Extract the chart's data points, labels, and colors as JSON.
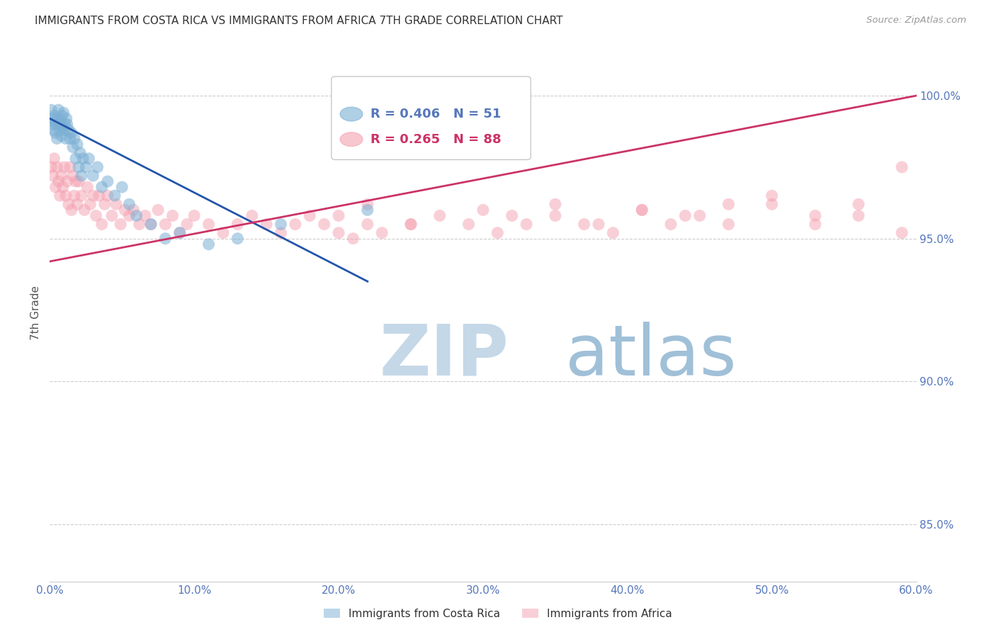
{
  "title": "IMMIGRANTS FROM COSTA RICA VS IMMIGRANTS FROM AFRICA 7TH GRADE CORRELATION CHART",
  "source": "Source: ZipAtlas.com",
  "ylabel": "7th Grade",
  "xlim": [
    0.0,
    60.0
  ],
  "ylim": [
    83.0,
    101.8
  ],
  "legend_blue_label": "Immigrants from Costa Rica",
  "legend_pink_label": "Immigrants from Africa",
  "legend_r_blue": "R = 0.406",
  "legend_n_blue": "N = 51",
  "legend_r_pink": "R = 0.265",
  "legend_n_pink": "N = 88",
  "blue_color": "#7BAFD4",
  "pink_color": "#F4A0B0",
  "trendline_blue_color": "#2255AA",
  "trendline_pink_color": "#CC3366",
  "watermark_zip_color": "#C5D8E8",
  "watermark_atlas_color": "#A0C0D8",
  "background_color": "#FFFFFF",
  "grid_color": "#CCCCCC",
  "axis_label_color": "#5577BB",
  "title_color": "#333333",
  "blue_scatter_x": [
    0.1,
    0.15,
    0.2,
    0.25,
    0.3,
    0.35,
    0.4,
    0.45,
    0.5,
    0.55,
    0.6,
    0.65,
    0.7,
    0.75,
    0.8,
    0.85,
    0.9,
    0.95,
    1.0,
    1.05,
    1.1,
    1.15,
    1.2,
    1.3,
    1.4,
    1.5,
    1.6,
    1.7,
    1.8,
    1.9,
    2.0,
    2.1,
    2.2,
    2.3,
    2.5,
    2.7,
    3.0,
    3.3,
    3.6,
    4.0,
    4.5,
    5.0,
    5.5,
    6.0,
    7.0,
    8.0,
    9.0,
    11.0,
    13.0,
    16.0,
    22.0
  ],
  "blue_scatter_y": [
    99.5,
    99.2,
    99.0,
    98.8,
    99.3,
    99.1,
    98.7,
    99.0,
    98.5,
    99.2,
    99.5,
    99.0,
    98.8,
    99.1,
    98.6,
    99.3,
    98.9,
    99.4,
    98.8,
    99.0,
    98.5,
    99.2,
    99.0,
    98.8,
    98.5,
    98.7,
    98.2,
    98.5,
    97.8,
    98.3,
    97.5,
    98.0,
    97.2,
    97.8,
    97.5,
    97.8,
    97.2,
    97.5,
    96.8,
    97.0,
    96.5,
    96.8,
    96.2,
    95.8,
    95.5,
    95.0,
    95.2,
    94.8,
    95.0,
    95.5,
    96.0
  ],
  "pink_scatter_x": [
    0.1,
    0.2,
    0.3,
    0.4,
    0.5,
    0.6,
    0.7,
    0.8,
    0.9,
    1.0,
    1.1,
    1.2,
    1.3,
    1.4,
    1.5,
    1.6,
    1.7,
    1.8,
    1.9,
    2.0,
    2.2,
    2.4,
    2.6,
    2.8,
    3.0,
    3.2,
    3.4,
    3.6,
    3.8,
    4.0,
    4.3,
    4.6,
    4.9,
    5.2,
    5.5,
    5.8,
    6.2,
    6.6,
    7.0,
    7.5,
    8.0,
    8.5,
    9.0,
    9.5,
    10.0,
    11.0,
    12.0,
    13.0,
    14.0,
    15.0,
    16.0,
    17.0,
    18.0,
    19.0,
    20.0,
    21.0,
    22.0,
    23.0,
    25.0,
    27.0,
    29.0,
    31.0,
    33.0,
    35.0,
    37.0,
    39.0,
    41.0,
    43.0,
    45.0,
    47.0,
    50.0,
    53.0,
    56.0,
    59.0,
    20.0,
    22.0,
    25.0,
    30.0,
    32.0,
    35.0,
    38.0,
    41.0,
    44.0,
    47.0,
    50.0,
    53.0,
    56.0,
    59.0
  ],
  "pink_scatter_y": [
    97.5,
    97.2,
    97.8,
    96.8,
    97.5,
    97.0,
    96.5,
    97.2,
    96.8,
    97.5,
    96.5,
    97.0,
    96.2,
    97.5,
    96.0,
    97.2,
    96.5,
    97.0,
    96.2,
    97.0,
    96.5,
    96.0,
    96.8,
    96.2,
    96.5,
    95.8,
    96.5,
    95.5,
    96.2,
    96.5,
    95.8,
    96.2,
    95.5,
    96.0,
    95.8,
    96.0,
    95.5,
    95.8,
    95.5,
    96.0,
    95.5,
    95.8,
    95.2,
    95.5,
    95.8,
    95.5,
    95.2,
    95.5,
    95.8,
    95.5,
    95.2,
    95.5,
    95.8,
    95.5,
    95.2,
    95.0,
    95.5,
    95.2,
    95.5,
    95.8,
    95.5,
    95.2,
    95.5,
    95.8,
    95.5,
    95.2,
    96.0,
    95.5,
    95.8,
    96.2,
    96.5,
    95.8,
    96.2,
    97.5,
    95.8,
    96.2,
    95.5,
    96.0,
    95.8,
    96.2,
    95.5,
    96.0,
    95.8,
    95.5,
    96.2,
    95.5,
    95.8,
    95.2
  ],
  "blue_trendline_x0": 0.0,
  "blue_trendline_x1": 22.0,
  "blue_trendline_y0": 99.2,
  "blue_trendline_y1": 93.5,
  "pink_trendline_x0": 0.0,
  "pink_trendline_x1": 60.0,
  "pink_trendline_y0": 94.2,
  "pink_trendline_y1": 100.0
}
